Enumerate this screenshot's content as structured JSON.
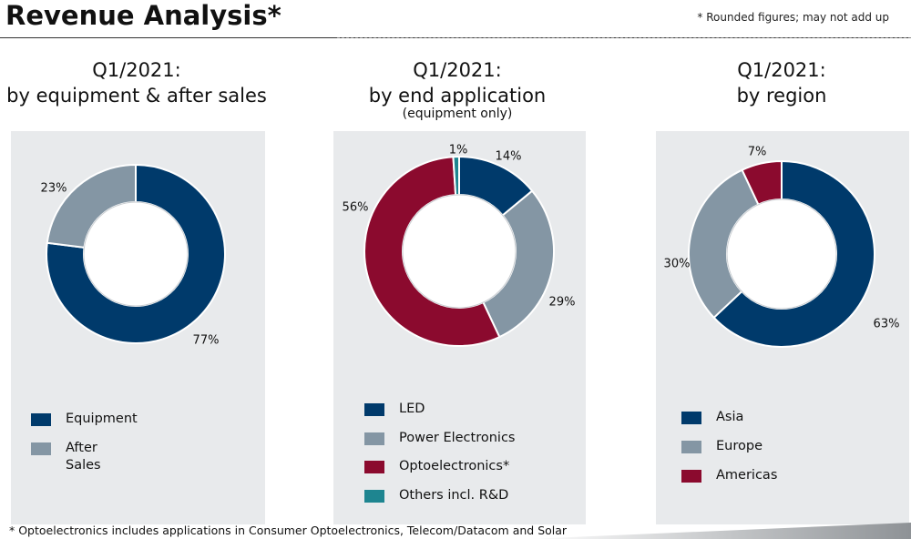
{
  "header": {
    "title": "Revenue Analysis*",
    "note": "* Rounded figures; may not add up"
  },
  "footnote": "* Optoelectronics includes applications in Consumer Optoelectronics, Telecom/Datacom and Solar",
  "chart_data": [
    {
      "type": "pie",
      "donut": true,
      "title_line1": "Q1/2021:",
      "title_line2": "by equipment & after sales",
      "subtitle": "",
      "slices": [
        {
          "name": "Equipment",
          "value": 77,
          "label": "77%",
          "color": "#003a6b"
        },
        {
          "name": "After Sales",
          "value": 23,
          "label": "23%",
          "color": "#8496a4"
        }
      ],
      "legend": [
        {
          "label": "Equipment",
          "color": "#003a6b"
        },
        {
          "label": "After",
          "label2": "Sales",
          "color": "#8496a4"
        }
      ]
    },
    {
      "type": "pie",
      "donut": true,
      "title_line1": "Q1/2021:",
      "title_line2": "by end application",
      "subtitle": "(equipment only)",
      "slices": [
        {
          "name": "LED",
          "value": 14,
          "label": "14%",
          "color": "#003a6b"
        },
        {
          "name": "Power Electronics",
          "value": 29,
          "label": "29%",
          "color": "#8496a4"
        },
        {
          "name": "Optoelectronics*",
          "value": 56,
          "label": "56%",
          "color": "#8b0a2e"
        },
        {
          "name": "Others incl. R&D",
          "value": 1,
          "label": "1%",
          "color": "#1e8590"
        }
      ],
      "legend": [
        {
          "label": "LED",
          "color": "#003a6b"
        },
        {
          "label": "Power Electronics",
          "color": "#8496a4"
        },
        {
          "label": "Optoelectronics*",
          "color": "#8b0a2e"
        },
        {
          "label": "Others incl. R&D",
          "color": "#1e8590"
        }
      ]
    },
    {
      "type": "pie",
      "donut": true,
      "title_line1": "Q1/2021:",
      "title_line2": "by region",
      "subtitle": "",
      "slices": [
        {
          "name": "Asia",
          "value": 63,
          "label": "63%",
          "color": "#003a6b"
        },
        {
          "name": "Europe",
          "value": 30,
          "label": "30%",
          "color": "#8496a4"
        },
        {
          "name": "Americas",
          "value": 7,
          "label": "7%",
          "color": "#8b0a2e"
        }
      ],
      "legend": [
        {
          "label": "Asia",
          "color": "#003a6b"
        },
        {
          "label": "Europe",
          "color": "#8496a4"
        },
        {
          "label": "Americas",
          "color": "#8b0a2e"
        }
      ]
    }
  ]
}
